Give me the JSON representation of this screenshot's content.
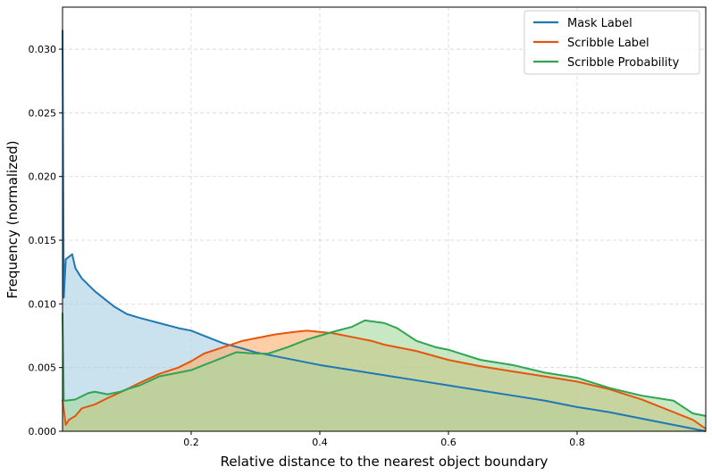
{
  "chart_data": {
    "type": "area",
    "title": "",
    "xlabel": "Relative distance to the nearest object boundary",
    "ylabel": "Frequency (normalized)",
    "xlim": [
      0.0,
      1.0
    ],
    "ylim": [
      0.0,
      0.0333
    ],
    "xticks": [
      0.2,
      0.4,
      0.6,
      0.8
    ],
    "xtick_labels": [
      "0.2",
      "0.4",
      "0.6",
      "0.8"
    ],
    "yticks": [
      0.0,
      0.005,
      0.01,
      0.015,
      0.02,
      0.025,
      0.03
    ],
    "ytick_labels": [
      "0.000",
      "0.005",
      "0.010",
      "0.015",
      "0.020",
      "0.025",
      "0.030"
    ],
    "grid": true,
    "legend_position": "top-right",
    "series": [
      {
        "name": "Mask Label",
        "color": "#1f77b4",
        "fill_color": "#a6cee3",
        "x": [
          0.0,
          0.002,
          0.005,
          0.01,
          0.015,
          0.02,
          0.03,
          0.04,
          0.05,
          0.06,
          0.08,
          0.1,
          0.12,
          0.15,
          0.18,
          0.2,
          0.22,
          0.25,
          0.28,
          0.3,
          0.35,
          0.4,
          0.45,
          0.5,
          0.55,
          0.6,
          0.65,
          0.7,
          0.75,
          0.8,
          0.85,
          0.9,
          0.95,
          0.98,
          1.0
        ],
        "y": [
          0.0315,
          0.0105,
          0.0135,
          0.0137,
          0.0139,
          0.0128,
          0.012,
          0.0115,
          0.011,
          0.0106,
          0.0098,
          0.0092,
          0.0089,
          0.0085,
          0.0081,
          0.0079,
          0.0075,
          0.0069,
          0.0065,
          0.0062,
          0.0057,
          0.0052,
          0.0048,
          0.0044,
          0.004,
          0.0036,
          0.0032,
          0.0028,
          0.0024,
          0.0019,
          0.0015,
          0.001,
          0.0005,
          0.0002,
          0.0
        ]
      },
      {
        "name": "Scribble Label",
        "color": "#e6550d",
        "fill_color": "#fdae6b",
        "x": [
          0.0,
          0.005,
          0.01,
          0.02,
          0.03,
          0.05,
          0.07,
          0.1,
          0.12,
          0.15,
          0.18,
          0.2,
          0.22,
          0.25,
          0.28,
          0.3,
          0.33,
          0.36,
          0.38,
          0.4,
          0.42,
          0.45,
          0.48,
          0.5,
          0.55,
          0.6,
          0.65,
          0.7,
          0.75,
          0.8,
          0.85,
          0.9,
          0.95,
          0.98,
          1.0
        ],
        "y": [
          0.0025,
          0.0005,
          0.0009,
          0.0012,
          0.0018,
          0.0021,
          0.0026,
          0.0033,
          0.0038,
          0.0045,
          0.005,
          0.0055,
          0.0061,
          0.0066,
          0.0071,
          0.0073,
          0.0076,
          0.0078,
          0.0079,
          0.0078,
          0.0077,
          0.0074,
          0.0071,
          0.0068,
          0.0063,
          0.0056,
          0.0051,
          0.0047,
          0.0043,
          0.0039,
          0.0033,
          0.0025,
          0.0015,
          0.0009,
          0.0002
        ]
      },
      {
        "name": "Scribble Probability",
        "color": "#31a354",
        "fill_color": "#a1d99b",
        "x": [
          0.0,
          0.002,
          0.005,
          0.02,
          0.04,
          0.05,
          0.07,
          0.09,
          0.1,
          0.12,
          0.15,
          0.18,
          0.2,
          0.22,
          0.25,
          0.27,
          0.3,
          0.32,
          0.35,
          0.38,
          0.4,
          0.42,
          0.45,
          0.47,
          0.5,
          0.52,
          0.55,
          0.58,
          0.6,
          0.65,
          0.7,
          0.75,
          0.8,
          0.85,
          0.9,
          0.95,
          0.98,
          1.0
        ],
        "y": [
          0.0093,
          0.0024,
          0.0024,
          0.0025,
          0.003,
          0.0031,
          0.0029,
          0.0031,
          0.0033,
          0.0036,
          0.0043,
          0.0046,
          0.0048,
          0.0052,
          0.0058,
          0.0062,
          0.0061,
          0.0061,
          0.0066,
          0.0072,
          0.0075,
          0.0078,
          0.0082,
          0.0087,
          0.0085,
          0.0081,
          0.0071,
          0.0066,
          0.0064,
          0.0056,
          0.0052,
          0.0046,
          0.0042,
          0.0034,
          0.0028,
          0.0024,
          0.0014,
          0.0012
        ]
      }
    ]
  }
}
